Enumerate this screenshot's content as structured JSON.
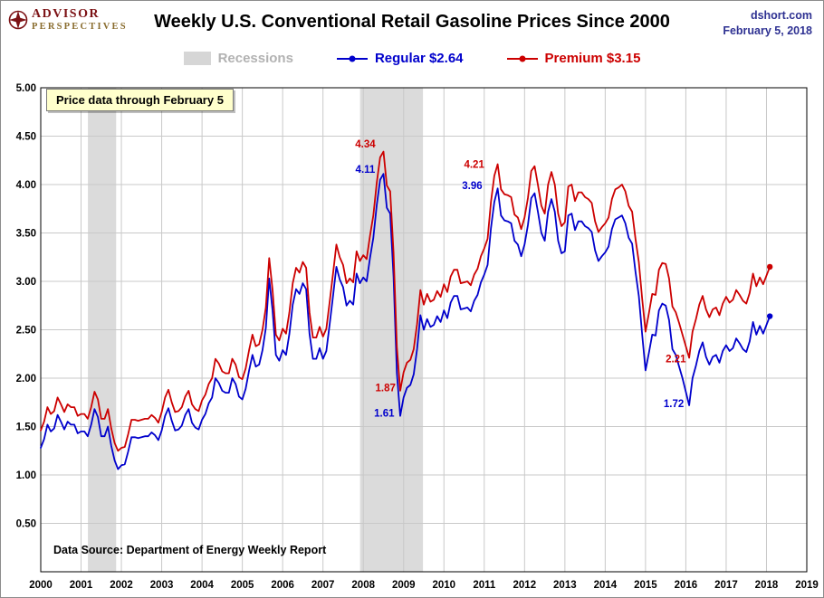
{
  "header": {
    "logo_line1": "ADVISOR",
    "logo_line2": "PERSPECTIVES",
    "title": "Weekly U.S. Conventional Retail Gasoline Prices Since 2000",
    "site": "dshort.com",
    "date": "February 5, 2018"
  },
  "legend": {
    "recessions": "Recessions",
    "regular": "Regular  $2.64",
    "premium": "Premium  $3.15"
  },
  "note_box": "Price data through February 5",
  "source_note": "Data Source: Department of Energy Weekly Report",
  "colors": {
    "regular": "#0000CC",
    "premium": "#CC0000",
    "recession_band": "#DBDBDB",
    "gridline": "#C9C9C9",
    "plot_border": "#000000",
    "header_blue": "#2E3192",
    "logo_maroon": "#7C1215",
    "logo_bronze": "#8A6D2F",
    "note_bg": "#FFFFCC"
  },
  "chart_data": {
    "type": "line",
    "title": "Weekly U.S. Conventional Retail Gasoline Prices Since 2000",
    "xlabel": "",
    "ylabel": "",
    "xlim": [
      2000,
      2019
    ],
    "ylim": [
      0,
      5
    ],
    "x_start": 2000.0,
    "x_step": 0.0833333,
    "x_ticks": [
      2000,
      2001,
      2002,
      2003,
      2004,
      2005,
      2006,
      2007,
      2008,
      2009,
      2010,
      2011,
      2012,
      2013,
      2014,
      2015,
      2016,
      2017,
      2018,
      2019
    ],
    "y_ticks": [
      {
        "value": 5.0,
        "label": "5.00"
      },
      {
        "value": 4.5,
        "label": "4.50"
      },
      {
        "value": 4.0,
        "label": "4.00"
      },
      {
        "value": 3.5,
        "label": "3.50"
      },
      {
        "value": 3.0,
        "label": "3.00"
      },
      {
        "value": 2.5,
        "label": "2.50"
      },
      {
        "value": 2.0,
        "label": "2.00"
      },
      {
        "value": 1.5,
        "label": "1.50"
      },
      {
        "value": 1.0,
        "label": "1.00"
      },
      {
        "value": 0.5,
        "label": "0.50"
      }
    ],
    "recessions": [
      {
        "start": 2001.17,
        "end": 2001.87
      },
      {
        "start": 2007.92,
        "end": 2009.48
      }
    ],
    "series": [
      {
        "name": "Regular",
        "latest": 2.64,
        "color": "#0000CC",
        "values": [
          1.28,
          1.37,
          1.52,
          1.45,
          1.48,
          1.62,
          1.55,
          1.47,
          1.55,
          1.52,
          1.52,
          1.43,
          1.45,
          1.45,
          1.4,
          1.52,
          1.68,
          1.6,
          1.4,
          1.4,
          1.5,
          1.3,
          1.15,
          1.06,
          1.1,
          1.11,
          1.24,
          1.39,
          1.39,
          1.38,
          1.39,
          1.4,
          1.4,
          1.44,
          1.41,
          1.36,
          1.46,
          1.61,
          1.69,
          1.56,
          1.46,
          1.47,
          1.51,
          1.62,
          1.68,
          1.54,
          1.49,
          1.47,
          1.57,
          1.63,
          1.74,
          1.8,
          2.0,
          1.95,
          1.87,
          1.85,
          1.85,
          2.0,
          1.94,
          1.81,
          1.78,
          1.89,
          2.08,
          2.24,
          2.12,
          2.14,
          2.29,
          2.52,
          3.03,
          2.7,
          2.24,
          2.18,
          2.29,
          2.24,
          2.46,
          2.76,
          2.92,
          2.87,
          2.98,
          2.92,
          2.46,
          2.2,
          2.2,
          2.31,
          2.2,
          2.28,
          2.56,
          2.85,
          3.15,
          3.02,
          2.94,
          2.75,
          2.8,
          2.76,
          3.08,
          2.98,
          3.04,
          3.0,
          3.24,
          3.45,
          3.79,
          4.05,
          4.11,
          3.76,
          3.7,
          3.05,
          2.05,
          1.61,
          1.8,
          1.9,
          1.93,
          2.04,
          2.3,
          2.65,
          2.5,
          2.61,
          2.53,
          2.55,
          2.64,
          2.58,
          2.7,
          2.62,
          2.78,
          2.85,
          2.85,
          2.71,
          2.72,
          2.73,
          2.69,
          2.8,
          2.86,
          2.99,
          3.07,
          3.17,
          3.55,
          3.82,
          3.96,
          3.68,
          3.63,
          3.62,
          3.6,
          3.42,
          3.38,
          3.26,
          3.38,
          3.58,
          3.86,
          3.91,
          3.71,
          3.5,
          3.42,
          3.72,
          3.85,
          3.72,
          3.42,
          3.29,
          3.31,
          3.68,
          3.7,
          3.53,
          3.62,
          3.62,
          3.57,
          3.55,
          3.51,
          3.32,
          3.21,
          3.26,
          3.3,
          3.36,
          3.54,
          3.64,
          3.66,
          3.68,
          3.6,
          3.45,
          3.39,
          3.1,
          2.85,
          2.45,
          2.08,
          2.26,
          2.45,
          2.44,
          2.7,
          2.77,
          2.75,
          2.6,
          2.3,
          2.24,
          2.12,
          2.0,
          1.86,
          1.72,
          2.0,
          2.13,
          2.28,
          2.37,
          2.22,
          2.14,
          2.22,
          2.24,
          2.16,
          2.28,
          2.34,
          2.28,
          2.31,
          2.41,
          2.36,
          2.3,
          2.27,
          2.38,
          2.58,
          2.45,
          2.54,
          2.46,
          2.55,
          2.64
        ]
      },
      {
        "name": "Premium",
        "latest": 3.15,
        "color": "#CC0000",
        "values": [
          1.46,
          1.55,
          1.7,
          1.63,
          1.66,
          1.8,
          1.73,
          1.65,
          1.73,
          1.7,
          1.7,
          1.61,
          1.63,
          1.63,
          1.58,
          1.7,
          1.86,
          1.78,
          1.58,
          1.58,
          1.68,
          1.48,
          1.33,
          1.25,
          1.28,
          1.29,
          1.42,
          1.57,
          1.57,
          1.56,
          1.57,
          1.58,
          1.58,
          1.62,
          1.59,
          1.54,
          1.65,
          1.8,
          1.88,
          1.75,
          1.65,
          1.66,
          1.7,
          1.81,
          1.87,
          1.73,
          1.68,
          1.66,
          1.77,
          1.83,
          1.94,
          2.0,
          2.2,
          2.15,
          2.07,
          2.05,
          2.05,
          2.2,
          2.14,
          2.01,
          1.99,
          2.1,
          2.29,
          2.45,
          2.33,
          2.35,
          2.5,
          2.73,
          3.24,
          2.91,
          2.45,
          2.39,
          2.51,
          2.46,
          2.68,
          2.98,
          3.14,
          3.09,
          3.2,
          3.14,
          2.68,
          2.42,
          2.42,
          2.53,
          2.43,
          2.51,
          2.79,
          3.08,
          3.38,
          3.25,
          3.17,
          2.98,
          3.03,
          2.99,
          3.31,
          3.21,
          3.27,
          3.23,
          3.47,
          3.68,
          4.02,
          4.28,
          4.34,
          3.99,
          3.93,
          3.3,
          2.32,
          1.87,
          2.06,
          2.16,
          2.19,
          2.3,
          2.56,
          2.91,
          2.76,
          2.87,
          2.79,
          2.81,
          2.9,
          2.84,
          2.97,
          2.89,
          3.05,
          3.12,
          3.12,
          2.98,
          2.99,
          3.0,
          2.96,
          3.07,
          3.13,
          3.26,
          3.34,
          3.44,
          3.82,
          4.09,
          4.21,
          3.95,
          3.9,
          3.89,
          3.87,
          3.69,
          3.66,
          3.54,
          3.66,
          3.86,
          4.14,
          4.19,
          3.99,
          3.78,
          3.7,
          4.0,
          4.13,
          4.0,
          3.7,
          3.57,
          3.61,
          3.98,
          4.0,
          3.83,
          3.92,
          3.92,
          3.87,
          3.85,
          3.81,
          3.62,
          3.51,
          3.56,
          3.6,
          3.66,
          3.85,
          3.95,
          3.97,
          4.0,
          3.93,
          3.78,
          3.72,
          3.44,
          3.2,
          2.82,
          2.48,
          2.67,
          2.87,
          2.86,
          3.12,
          3.19,
          3.18,
          3.03,
          2.74,
          2.68,
          2.57,
          2.45,
          2.33,
          2.21,
          2.48,
          2.61,
          2.76,
          2.85,
          2.71,
          2.63,
          2.71,
          2.73,
          2.65,
          2.77,
          2.84,
          2.78,
          2.81,
          2.91,
          2.86,
          2.8,
          2.77,
          2.88,
          3.08,
          2.95,
          3.04,
          2.97,
          3.06,
          3.15
        ]
      }
    ],
    "annotations": [
      {
        "text": "4.34",
        "x": 2008.05,
        "y": 4.42,
        "color": "#CC0000"
      },
      {
        "text": "4.11",
        "x": 2008.05,
        "y": 4.16,
        "color": "#0000CC"
      },
      {
        "text": "4.21",
        "x": 2010.75,
        "y": 4.21,
        "color": "#CC0000"
      },
      {
        "text": "3.96",
        "x": 2010.7,
        "y": 3.99,
        "color": "#0000CC"
      },
      {
        "text": "1.87",
        "x": 2008.55,
        "y": 1.9,
        "color": "#CC0000"
      },
      {
        "text": "1.61",
        "x": 2008.52,
        "y": 1.64,
        "color": "#0000CC"
      },
      {
        "text": "2.21",
        "x": 2015.75,
        "y": 2.2,
        "color": "#CC0000"
      },
      {
        "text": "1.72",
        "x": 2015.7,
        "y": 1.74,
        "color": "#0000CC"
      }
    ],
    "legend_position": "top",
    "grid": true
  }
}
